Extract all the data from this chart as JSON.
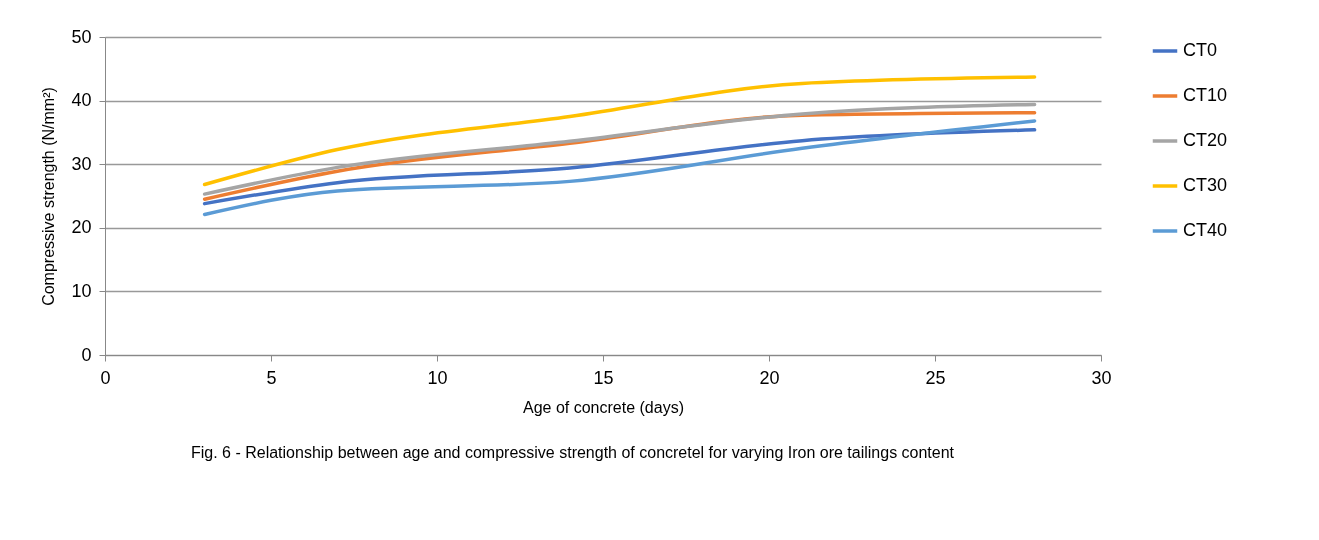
{
  "chart_data": {
    "type": "line",
    "xlabel": "Age of concrete (days)",
    "ylabel": "Compressive strength (N/mm²)",
    "x": [
      3,
      7,
      14,
      21,
      28
    ],
    "series": [
      {
        "name": "CT0",
        "color": "#4472c4",
        "values": [
          23.8,
          27.1,
          29.4,
          33.7,
          35.4
        ]
      },
      {
        "name": "CT10",
        "color": "#ed7d31",
        "values": [
          24.5,
          28.9,
          33.3,
          37.7,
          38.1
        ]
      },
      {
        "name": "CT20",
        "color": "#a5a5a5",
        "values": [
          25.3,
          29.5,
          33.6,
          37.9,
          39.4
        ]
      },
      {
        "name": "CT30",
        "color": "#ffc000",
        "values": [
          26.8,
          32.3,
          37.5,
          42.7,
          43.7
        ]
      },
      {
        "name": "CT40",
        "color": "#5b9bd5",
        "values": [
          22.1,
          25.8,
          27.3,
          32.5,
          36.8
        ]
      }
    ],
    "xlim": [
      0,
      30
    ],
    "xticks": [
      0,
      5,
      10,
      15,
      20,
      25,
      30
    ],
    "ylim": [
      0,
      50
    ],
    "yticks": [
      0,
      10,
      20,
      30,
      40,
      50
    ],
    "grid": "y",
    "legend": "right",
    "marker": "none",
    "line_style": "solid",
    "annotations": [
      "Fig. 6 - Relationship between age and compressive strength of concretel for varying Iron ore tailings content"
    ]
  }
}
